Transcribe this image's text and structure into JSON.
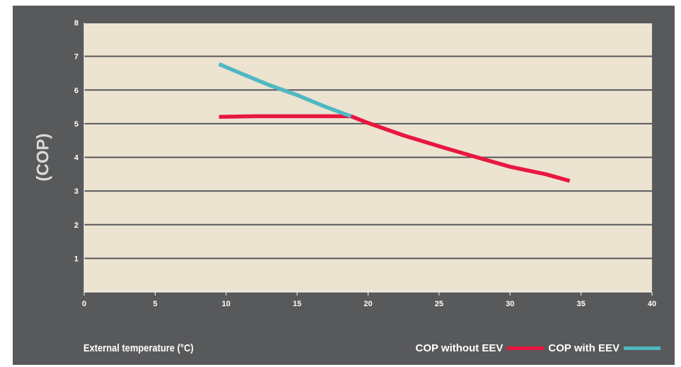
{
  "chart_data": {
    "type": "line",
    "title": "",
    "xlabel": "External temperature (°C)",
    "ylabel": "(COP)",
    "xlim": [
      0,
      40
    ],
    "ylim": [
      0,
      8
    ],
    "xticks": [
      0,
      5,
      10,
      15,
      20,
      25,
      30,
      35,
      40
    ],
    "yticks": [
      1,
      2,
      3,
      4,
      5,
      6,
      7,
      8
    ],
    "grid": true,
    "legend_position": "bottom-right",
    "plot_background": "#ece3d1",
    "panel_background": "#58595b",
    "series": [
      {
        "name": "COP without EEV",
        "color": "#e8173f",
        "x": [
          9.5,
          12,
          15,
          18.8,
          20,
          22.5,
          25,
          27.5,
          30,
          32.5,
          34.2
        ],
        "y": [
          5.2,
          5.22,
          5.22,
          5.22,
          5.02,
          4.65,
          4.33,
          4.02,
          3.72,
          3.5,
          3.3
        ]
      },
      {
        "name": "COP with EEV",
        "color": "#4fb8c2",
        "x": [
          9.5,
          11,
          13,
          15,
          17,
          18.8
        ],
        "y": [
          6.77,
          6.5,
          6.15,
          5.85,
          5.5,
          5.22
        ]
      }
    ]
  }
}
